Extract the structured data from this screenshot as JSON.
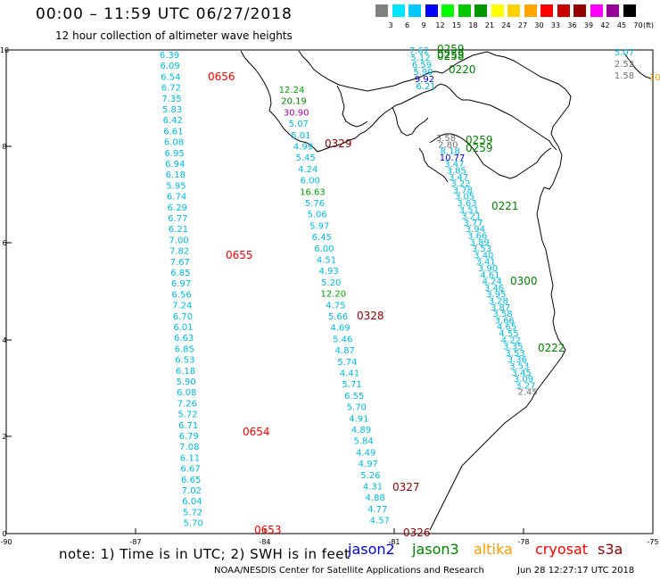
{
  "header": {
    "title": "00:00 – 11:59 UTC 06/27/2018",
    "subtitle": "12 hour collection of altimeter wave heights"
  },
  "legend": {
    "values": [
      "3",
      "6",
      "9",
      "12",
      "15",
      "18",
      "21",
      "24",
      "27",
      "30",
      "33",
      "36",
      "39",
      "42",
      "45",
      "70"
    ],
    "unit": "(ft)",
    "colors": [
      "#808080",
      "#00e5ff",
      "#00c8ff",
      "#0000ff",
      "#00ff00",
      "#00c800",
      "#009600",
      "#ffff00",
      "#ffd200",
      "#ffa500",
      "#ff0000",
      "#c80000",
      "#960000",
      "#ff00ff",
      "#960096",
      "#000000"
    ]
  },
  "axes": {
    "x_labels": [
      "-90",
      "-87",
      "-84",
      "-81",
      "-78",
      "-75"
    ],
    "y_labels": [
      "0",
      "2",
      "4",
      "6",
      "8",
      "10"
    ]
  },
  "colors": {
    "cyan": "#00b8e0",
    "green": "#008000",
    "lime": "#00a000",
    "red": "#ff0000",
    "darkred": "#8b0000",
    "purple": "#a000a0",
    "gray": "#707070",
    "blue": "#0000cc",
    "orange": "#ff9900"
  },
  "track1": {
    "values": [
      "6.39",
      "6.09",
      "6.54",
      "6.72",
      "7.35",
      "5.83",
      "6.42",
      "6.61",
      "6.08",
      "6.95",
      "6.94",
      "6.18",
      "5.95",
      "6.74",
      "6.29",
      "6.77",
      "6.21",
      "7.00",
      "7.82",
      "7.67",
      "6.85",
      "6.97",
      "6.56",
      "7.24",
      "6.70",
      "6.01",
      "6.63",
      "6.85",
      "6.53",
      "6.18",
      "5.90",
      "6.08",
      "7.26",
      "5.72",
      "6.71",
      "6.79",
      "7.08",
      "6.11",
      "6.67",
      "6.65",
      "7.02",
      "6.04",
      "5.72",
      "5.70"
    ],
    "times": [
      "0656",
      "0655",
      "0654",
      "0653"
    ]
  },
  "track2": {
    "values": [
      "12.24",
      "20.19",
      "30.90",
      "5.07",
      "5.01",
      "4.99",
      "5.45",
      "4.24",
      "6.00",
      "16.63",
      "5.76",
      "5.06",
      "5.97",
      "6.45",
      "6.00",
      "4.51",
      "4.93",
      "5.20",
      "12.20",
      "4.75",
      "5.66",
      "4.69",
      "5.46",
      "4.87",
      "5.74",
      "4.41",
      "5.71",
      "6.55",
      "5.70",
      "4.91",
      "4.89",
      "5.84",
      "4.49",
      "4.97",
      "5.26",
      "4.31",
      "4.88",
      "4.77",
      "4.57"
    ],
    "times": [
      "0329",
      "0328",
      "0327",
      "0326"
    ]
  },
  "track3": {
    "top_values": [
      "7.62",
      "5.12",
      "6.59",
      "5.99",
      "9.92",
      "6.21"
    ],
    "values": [
      "3.58",
      "2.80",
      "8.18",
      "10.77",
      "3.47",
      "3.85",
      "3.47",
      "3.22",
      "3.78",
      "3.05",
      "3.63",
      "3.51",
      "3.21",
      "3.77",
      "3.94",
      "3.66",
      "3.89",
      "3.53",
      "3.40",
      "3.41",
      "3.90",
      "4.61",
      "4.24",
      "3.46",
      "3.95",
      "3.28",
      "3.87",
      "3.58",
      "3.66",
      "4.65",
      "4.55",
      "4.22",
      "3.35",
      "3.53",
      "3.36",
      "3.53",
      "3.45",
      "3.09",
      "3.27",
      "2.45"
    ],
    "times": [
      "0259",
      "0259",
      "0258",
      "0220",
      "0259",
      "0259",
      "0221",
      "0300",
      "0222"
    ]
  },
  "corner": {
    "values": [
      "5.07",
      "2.52",
      "1.58"
    ],
    "partial": "10"
  },
  "footer": {
    "note": "note: 1) Time is in UTC; 2) SWH is in feet",
    "satellites": [
      {
        "name": "jason2",
        "color": "#0000ee"
      },
      {
        "name": "jason3",
        "color": "#008000"
      },
      {
        "name": "altika",
        "color": "#ff9900"
      },
      {
        "name": "cryosat",
        "color": "#ff0000"
      },
      {
        "name": "s3a",
        "color": "#8b0000"
      }
    ],
    "credit": "NOAA/NESDIS Center for Satellite Applications and Research",
    "generated": "Jun 28 12:27:17 UTC 2018"
  }
}
